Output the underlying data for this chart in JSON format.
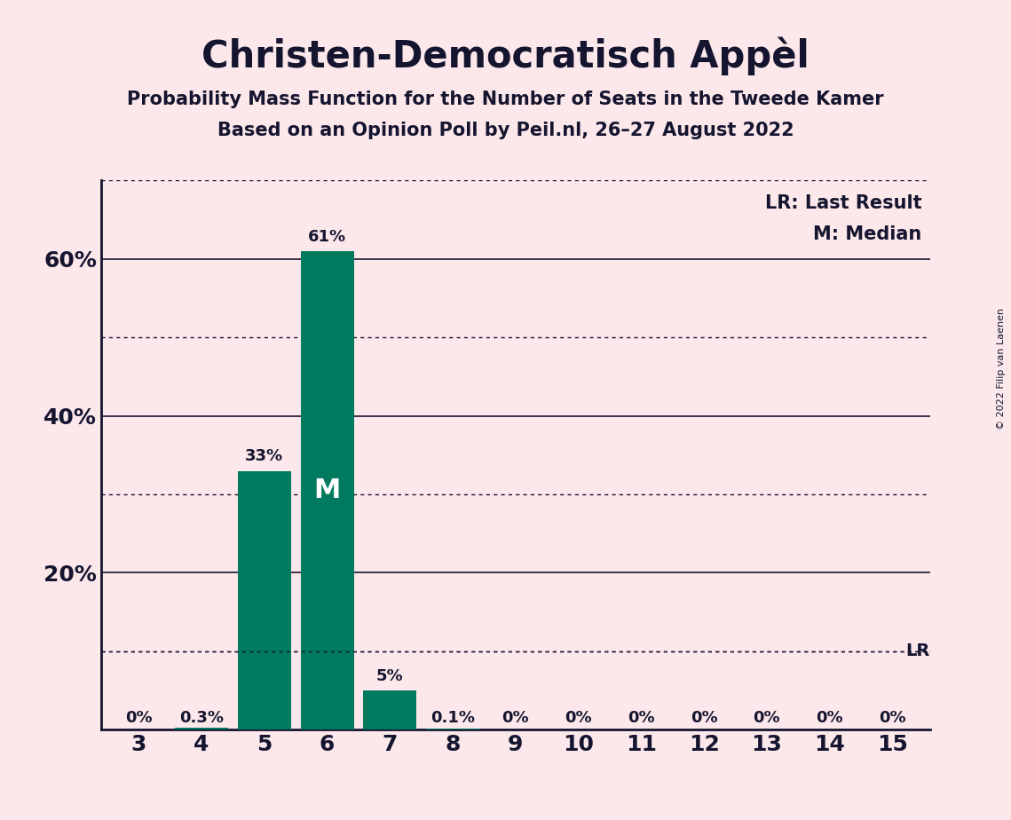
{
  "title": "Christen-Democratisch Appèl",
  "subtitle1": "Probability Mass Function for the Number of Seats in the Tweede Kamer",
  "subtitle2": "Based on an Opinion Poll by Peil.nl, 26–27 August 2022",
  "copyright": "© 2022 Filip van Laenen",
  "categories": [
    3,
    4,
    5,
    6,
    7,
    8,
    9,
    10,
    11,
    12,
    13,
    14,
    15
  ],
  "values": [
    0.0,
    0.3,
    33.0,
    61.0,
    5.0,
    0.1,
    0.0,
    0.0,
    0.0,
    0.0,
    0.0,
    0.0,
    0.0
  ],
  "bar_color": "#007a5e",
  "background_color": "#fce8ea",
  "text_color": "#151530",
  "median_seat": 6,
  "lr_value": 10.0,
  "ylim": [
    0,
    70
  ],
  "ytick_labels": [
    20,
    40,
    60
  ],
  "ytick_values": [
    20,
    40,
    60
  ],
  "yticks_dotted": [
    10,
    30,
    50,
    70
  ],
  "legend_lr": "LR: Last Result",
  "legend_m": "M: Median"
}
